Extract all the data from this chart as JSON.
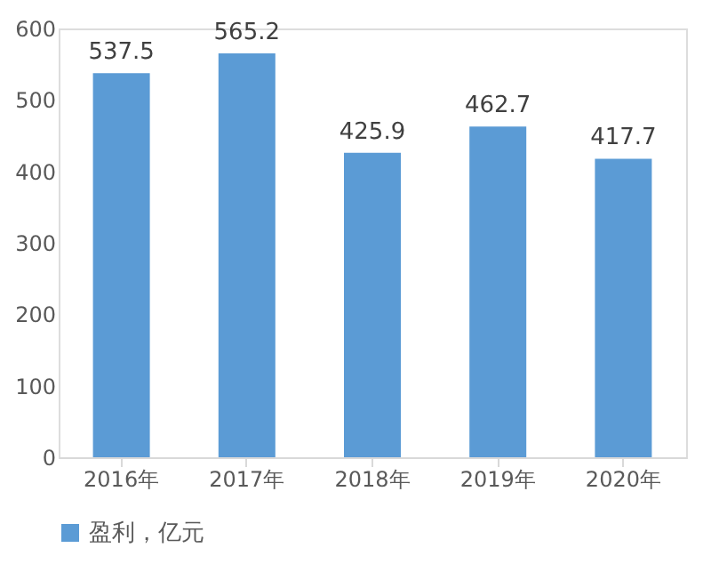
{
  "chart_data": {
    "type": "bar",
    "categories": [
      "2016年",
      "2017年",
      "2018年",
      "2019年",
      "2020年"
    ],
    "series": [
      {
        "name": "盈利，亿元",
        "color": "#5b9bd5",
        "values": [
          537.5,
          565.2,
          425.9,
          462.7,
          417.7
        ]
      }
    ],
    "ylim": [
      0,
      600
    ],
    "yticks": [
      0,
      100,
      200,
      300,
      400,
      500,
      600
    ],
    "grid": false,
    "legend": "bottom",
    "data_labels": true
  }
}
